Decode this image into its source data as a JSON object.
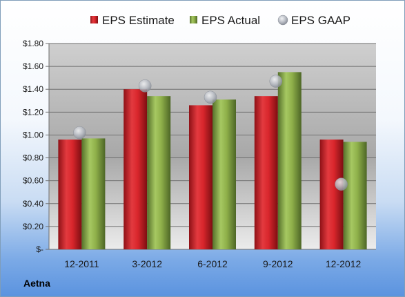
{
  "company": "Aetna",
  "colors": {
    "estimate": "#d9262c",
    "actual": "#8fb04a",
    "gaap": "#b8bcc4"
  },
  "chart_data": {
    "type": "bar",
    "categories": [
      "12-2011",
      "3-2012",
      "6-2012",
      "9-2012",
      "12-2012"
    ],
    "series": [
      {
        "name": "EPS Estimate",
        "kind": "bar",
        "values": [
          0.96,
          1.4,
          1.26,
          1.34,
          0.96
        ]
      },
      {
        "name": "EPS Actual",
        "kind": "bar",
        "values": [
          0.97,
          1.34,
          1.31,
          1.55,
          0.94
        ]
      },
      {
        "name": "EPS GAAP",
        "kind": "marker",
        "values": [
          1.02,
          1.43,
          1.33,
          1.47,
          0.57
        ]
      }
    ],
    "y_ticks": [
      "$-",
      "$0.20",
      "$0.40",
      "$0.60",
      "$0.80",
      "$1.00",
      "$1.20",
      "$1.40",
      "$1.60",
      "$1.80"
    ],
    "ylim": [
      0,
      1.8
    ],
    "ystep": 0.2,
    "grid": true,
    "legend_position": "top"
  }
}
